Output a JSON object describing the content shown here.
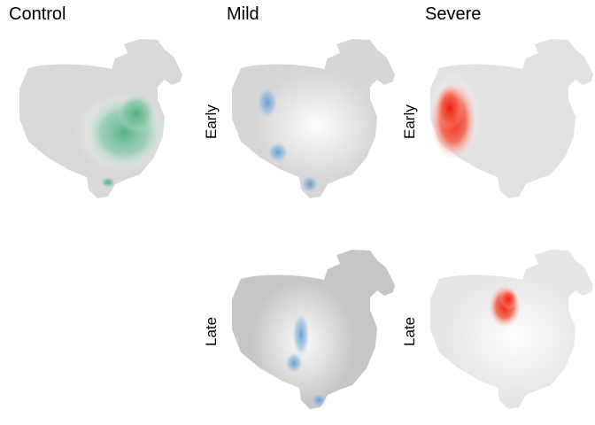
{
  "columns": {
    "control": "Control",
    "mild": "Mild",
    "severe": "Severe"
  },
  "rows": {
    "early": "Early",
    "late": "Late"
  },
  "colors": {
    "tissue_light": "#d9d9d9",
    "tissue_dark": "#c4c4c4",
    "control_signal": "#5fb58c",
    "mild_signal": "#6a9fd0",
    "severe_signal": "#f0301c"
  }
}
